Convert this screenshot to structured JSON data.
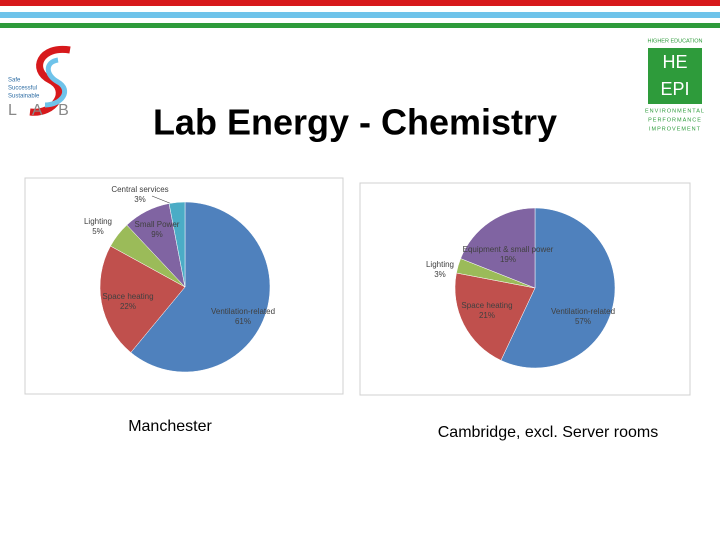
{
  "title": "Lab Energy - Chemistry",
  "logos": {
    "left": [
      "Safe",
      "Successful",
      "Sustainable"
    ],
    "left_word": "L A B",
    "right_top": "HIGHER EDUCATION",
    "right_box": [
      "HE",
      "EPI"
    ],
    "right_bottom": [
      "ENVIRONMENTAL",
      "PERFORMANCE",
      "IMPROVEMENT"
    ]
  },
  "chart_data": [
    {
      "type": "pie",
      "title": "Manchester",
      "categories": [
        "Ventilation-related",
        "Space heating",
        "Lighting",
        "Small Power",
        "Central services"
      ],
      "values": [
        61,
        22,
        5,
        9,
        3
      ],
      "value_labels": [
        "61%",
        "22%",
        "5%",
        "9%",
        "3%"
      ],
      "colors": [
        "#4f81bd",
        "#c0504d",
        "#9bbb59",
        "#8064a2",
        "#4bacc6"
      ]
    },
    {
      "type": "pie",
      "title": "Cambridge, excl. Server rooms",
      "categories": [
        "Ventilation-related",
        "Space heating",
        "Lighting",
        "Equipment & small power"
      ],
      "values": [
        57,
        21,
        3,
        19
      ],
      "value_labels": [
        "57%",
        "21%",
        "3%",
        "19%"
      ],
      "colors": [
        "#4f81bd",
        "#c0504d",
        "#9bbb59",
        "#8064a2"
      ]
    }
  ]
}
